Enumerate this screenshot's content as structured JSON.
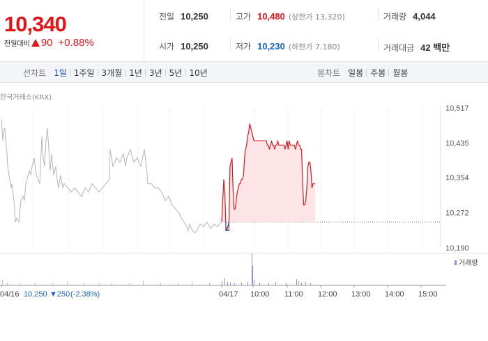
{
  "quote": {
    "price": "10,340",
    "change_label": "전일대비",
    "change": "90",
    "change_pct": "+0.88%"
  },
  "stats": {
    "prev_close_label": "전일",
    "prev_close": "10,250",
    "high_label": "고가",
    "high": "10,480",
    "upper_limit_label": "상한가",
    "upper_limit": "13,320",
    "volume_label": "거래량",
    "volume": "4,044",
    "open_label": "시가",
    "open": "10,250",
    "low_label": "저가",
    "low": "10,230",
    "lower_limit_label": "하한가",
    "lower_limit": "7,180",
    "amount_label": "거래대금",
    "amount": "42 백만"
  },
  "tabs": {
    "line_label": "선차트",
    "line_items": [
      "1일",
      "1주일",
      "3개월",
      "1년",
      "3년",
      "5년",
      "10년"
    ],
    "active": "1일",
    "candle_label": "봉차트",
    "candle_items": [
      "일봉",
      "주봉",
      "월봉"
    ]
  },
  "chart": {
    "source": "한국거래소(KRX)",
    "y_ticks": [
      "10,517",
      "10,435",
      "10,354",
      "10,272",
      "10,190"
    ],
    "x_ticks": [
      "04/16",
      "04/17",
      "10:00",
      "11:00",
      "12:00",
      "13:00",
      "14:00",
      "15:00"
    ],
    "volume_legend": "거래량",
    "status_prefix": "04/16",
    "status_price": "10,250",
    "status_change": "▼250",
    "status_pct": "(-2.38%)",
    "colors": {
      "up": "#e0151a",
      "down": "#1a63c8",
      "prev": "#b5b5b5",
      "fill": "#fde5e7"
    }
  },
  "chart_data": {
    "type": "line",
    "title": "",
    "source": "한국거래소(KRX)",
    "ylim": [
      10190,
      10517
    ],
    "y_ticks": [
      10517,
      10435,
      10354,
      10272,
      10190
    ],
    "x_ticks": [
      "04/16",
      "04/17",
      "10:00",
      "11:00",
      "12:00",
      "13:00",
      "14:00",
      "15:00"
    ],
    "base_price": 10250,
    "series": [
      {
        "role": "previous-day",
        "x": [
          0,
          2,
          3,
          5,
          6,
          8,
          9,
          12,
          14,
          15,
          18,
          20,
          22,
          25,
          28,
          31,
          33,
          35,
          40,
          42,
          44,
          47,
          50,
          55,
          58,
          60,
          62,
          64,
          66,
          68,
          70,
          72,
          75,
          78,
          80,
          82,
          85,
          88,
          90,
          95,
          100,
          105,
          110,
          115,
          120,
          125,
          130,
          135,
          140,
          145,
          150,
          155,
          156,
          160,
          165,
          170,
          175,
          178,
          180,
          185,
          190,
          195,
          200,
          205,
          208,
          210,
          215,
          220,
          225,
          230,
          235,
          240,
          245,
          250,
          255,
          258,
          262,
          266,
          268,
          270,
          274,
          278,
          280,
          285,
          290,
          295,
          300,
          305,
          310,
          315
        ],
        "y": [
          10490,
          10440,
          10460,
          10470,
          10440,
          10410,
          10380,
          10350,
          10330,
          10340,
          10300,
          10250,
          10260,
          10250,
          10300,
          10310,
          10300,
          10340,
          10370,
          10360,
          10380,
          10400,
          10360,
          10340,
          10450,
          10400,
          10380,
          10440,
          10470,
          10420,
          10370,
          10410,
          10360,
          10380,
          10350,
          10330,
          10360,
          10330,
          10340,
          10330,
          10320,
          10330,
          10320,
          10310,
          10330,
          10320,
          10340,
          10330,
          10320,
          10330,
          10340,
          10350,
          10420,
          10380,
          10400,
          10390,
          10410,
          10380,
          10400,
          10420,
          10390,
          10400,
          10380,
          10420,
          10380,
          10340,
          10340,
          10330,
          10330,
          10320,
          10300,
          10310,
          10290,
          10280,
          10270,
          10260,
          10250,
          10240,
          10230,
          10245,
          10230,
          10225,
          10230,
          10245,
          10240,
          10250,
          10235,
          10245,
          10240,
          10250
        ]
      },
      {
        "role": "current-day",
        "x": [
          0,
          1,
          2,
          3,
          4,
          5,
          6,
          7,
          8,
          9,
          10,
          11,
          12,
          13,
          14,
          15,
          16,
          17,
          18,
          19,
          20,
          21,
          22,
          23,
          24,
          25,
          26,
          27,
          28,
          29,
          30,
          31,
          32,
          33,
          34,
          35,
          36,
          37,
          38,
          39,
          40,
          41,
          42,
          43,
          44,
          45,
          46,
          47,
          48,
          49,
          50,
          51,
          52,
          53,
          54,
          55,
          56,
          57,
          58,
          59,
          60,
          61,
          62,
          63,
          64,
          65,
          66,
          67,
          68,
          69,
          70,
          71,
          72,
          73,
          74,
          75,
          76,
          77,
          78,
          79,
          80,
          81,
          82,
          83,
          84,
          85,
          86,
          87,
          88,
          89,
          90
        ],
        "y": [
          10250,
          10300,
          10350,
          10320,
          10240,
          10230,
          10240,
          10250,
          10380,
          10390,
          10400,
          10320,
          10280,
          10280,
          10300,
          10320,
          10330,
          10340,
          10340,
          10350,
          10350,
          10360,
          10400,
          10420,
          10430,
          10450,
          10460,
          10480,
          10470,
          10460,
          10450,
          10440,
          10440,
          10440,
          10440,
          10440,
          10440,
          10440,
          10440,
          10440,
          10440,
          10440,
          10440,
          10440,
          10430,
          10430,
          10420,
          10430,
          10440,
          10430,
          10430,
          10420,
          10430,
          10430,
          10440,
          10430,
          10430,
          10430,
          10430,
          10430,
          10430,
          10420,
          10430,
          10440,
          10420,
          10440,
          10430,
          10430,
          10430,
          10430,
          10430,
          10420,
          10430,
          10440,
          10430,
          10430,
          10420,
          10420,
          10340,
          10290,
          10290,
          10300,
          10330,
          10380,
          10390,
          10390,
          10370,
          10330,
          10340,
          10340,
          10340
        ]
      }
    ]
  }
}
